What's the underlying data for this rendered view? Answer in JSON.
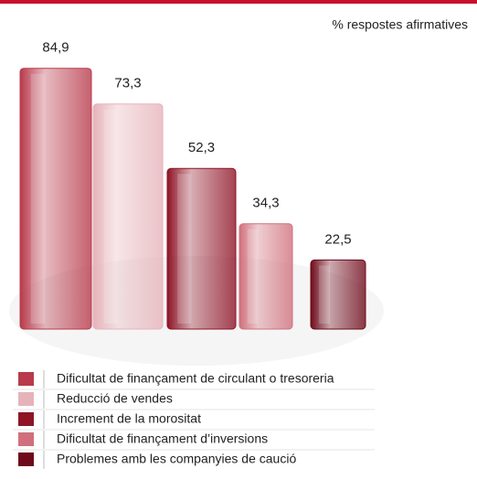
{
  "chart_data": {
    "type": "bar",
    "subtitle": "% respostes afirmatives",
    "categories": [
      "Dificultat de finançament de circulant o tresoreria",
      "Reducció de vendes",
      "Increment de la morositat",
      "Dificultat de finançament d’inversions",
      "Problemes amb les companyies de caució"
    ],
    "values": [
      84.9,
      73.3,
      52.3,
      34.3,
      22.5
    ],
    "value_labels": [
      "84,9",
      "73,3",
      "52,3",
      "34,3",
      "22,5"
    ],
    "colors": [
      "#b83a4b",
      "#e6b3ba",
      "#8e1426",
      "#d0707c",
      "#6e0a1a"
    ],
    "ylim": [
      0,
      100
    ]
  }
}
